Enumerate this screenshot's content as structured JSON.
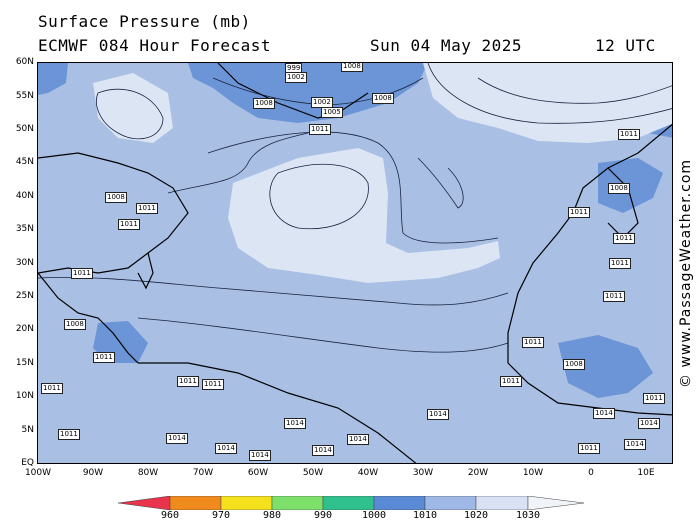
{
  "header": {
    "title": "Surface Pressure (mb)",
    "model": "ECMWF 084 Hour Forecast",
    "date": "Sun 04 May 2025",
    "time": "12 UTC"
  },
  "map": {
    "lat_labels": [
      "60N",
      "55N",
      "50N",
      "45N",
      "40N",
      "35N",
      "30N",
      "25N",
      "20N",
      "15N",
      "10N",
      "5N",
      "EQ"
    ],
    "lon_labels": [
      "100W",
      "90W",
      "80W",
      "70W",
      "60W",
      "50W",
      "40W",
      "30W",
      "20W",
      "10W",
      "0",
      "10E"
    ],
    "shading": {
      "1000-1010": "#6b95d6",
      "1010-1020": "#a9bfe4",
      "1020-1030": "#dbe5f4",
      "land_lo": "#5d88cf"
    },
    "isobar_labels": [
      "999",
      "1002",
      "1008",
      "1008",
      "1002",
      "1005",
      "1008",
      "1011",
      "1008",
      "1011",
      "1011",
      "1008",
      "1011",
      "1011",
      "1011",
      "1011",
      "1011",
      "1008",
      "1008",
      "1011",
      "1011",
      "1011",
      "1011",
      "1011",
      "1011",
      "1011",
      "1011",
      "1008",
      "1011",
      "1011",
      "1011",
      "1011",
      "1011",
      "1011",
      "1008",
      "1008",
      "1011",
      "1011",
      "1011",
      "1011",
      "1011",
      "1008",
      "1008",
      "1011",
      "1011",
      "1014",
      "1014",
      "1014",
      "1014",
      "1014",
      "1014",
      "1014",
      "1014",
      "1014",
      "1011",
      "1011",
      "1014"
    ]
  },
  "credit": "© www.PassageWeather.com",
  "colorbar": {
    "labels": [
      "960",
      "970",
      "980",
      "990",
      "1000",
      "1010",
      "1020",
      "1030"
    ],
    "colors": [
      "#e8344c",
      "#f08a1c",
      "#f4e01c",
      "#7de06a",
      "#2fc08e",
      "#5a8ad6",
      "#9fb8e6",
      "#d8e2f4"
    ]
  }
}
